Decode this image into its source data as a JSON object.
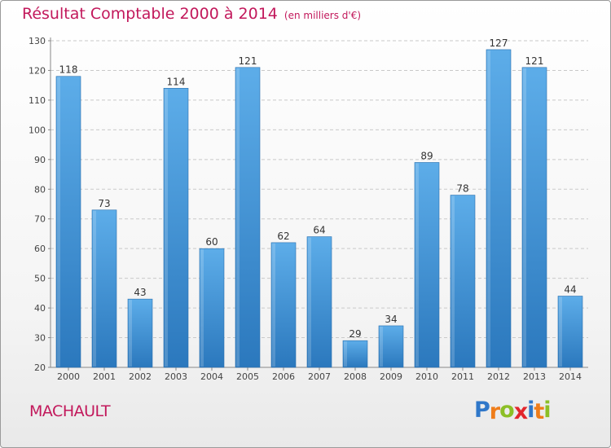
{
  "chart_data": {
    "type": "bar",
    "title": "Résultat Comptable 2000 à 2014",
    "subtitle": "(en milliers d'€)",
    "categories": [
      "2000",
      "2001",
      "2002",
      "2003",
      "2004",
      "2005",
      "2006",
      "2007",
      "2008",
      "2009",
      "2010",
      "2011",
      "2012",
      "2013",
      "2014"
    ],
    "values": [
      118,
      73,
      43,
      114,
      60,
      121,
      62,
      64,
      29,
      34,
      89,
      78,
      127,
      121,
      44
    ],
    "ylim": [
      20,
      130
    ],
    "yticks": [
      20,
      30,
      40,
      50,
      60,
      70,
      80,
      90,
      100,
      110,
      120,
      130
    ],
    "grid": true,
    "bar_color": "#3d8fd4"
  },
  "footer": {
    "place": "MACHAULT",
    "logo_text": "Proxiti",
    "logo_letters": [
      {
        "ch": "P",
        "color": "#2f77c9"
      },
      {
        "ch": "r",
        "color": "#ef7d1a"
      },
      {
        "ch": "o",
        "color": "#8cbf26"
      },
      {
        "ch": "x",
        "color": "#e2262d"
      },
      {
        "ch": "i",
        "color": "#2f77c9"
      },
      {
        "ch": "t",
        "color": "#ef7d1a"
      },
      {
        "ch": "i",
        "color": "#8cbf26"
      }
    ]
  }
}
